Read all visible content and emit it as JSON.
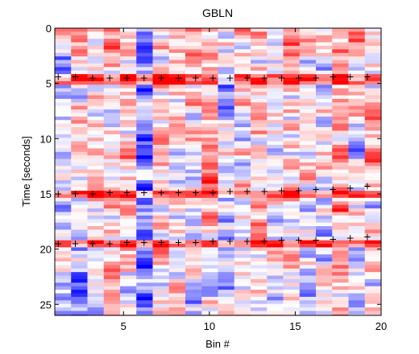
{
  "chart_data": {
    "type": "heatmap",
    "title": "GBLN",
    "xlabel": "Bin #",
    "ylabel": "Time [seconds]",
    "xlim": [
      1,
      20
    ],
    "ylim": [
      0,
      26
    ],
    "y_reversed": true,
    "xticks": [
      5,
      10,
      15,
      20
    ],
    "yticks": [
      0,
      5,
      10,
      15,
      20,
      25
    ],
    "colormap": {
      "negative": "#0000ff",
      "zero": "#ffffff",
      "positive": "#ff0000"
    },
    "color_range": [
      -1,
      1
    ],
    "marker_symbol": "+",
    "markers": [
      {
        "x": 1.2,
        "y": 4.4
      },
      {
        "x": 2.2,
        "y": 4.4
      },
      {
        "x": 3.2,
        "y": 4.5
      },
      {
        "x": 4.2,
        "y": 4.5
      },
      {
        "x": 5.2,
        "y": 4.5
      },
      {
        "x": 6.2,
        "y": 4.5
      },
      {
        "x": 7.2,
        "y": 4.5
      },
      {
        "x": 8.2,
        "y": 4.5
      },
      {
        "x": 9.2,
        "y": 4.5
      },
      {
        "x": 10.2,
        "y": 4.5
      },
      {
        "x": 11.2,
        "y": 4.5
      },
      {
        "x": 12.2,
        "y": 4.5
      },
      {
        "x": 13.2,
        "y": 4.5
      },
      {
        "x": 14.2,
        "y": 4.5
      },
      {
        "x": 15.2,
        "y": 4.5
      },
      {
        "x": 16.2,
        "y": 4.5
      },
      {
        "x": 17.2,
        "y": 4.4
      },
      {
        "x": 18.2,
        "y": 4.4
      },
      {
        "x": 19.2,
        "y": 4.4
      },
      {
        "x": 1.2,
        "y": 15.0
      },
      {
        "x": 2.2,
        "y": 15.0
      },
      {
        "x": 3.2,
        "y": 15.0
      },
      {
        "x": 4.2,
        "y": 14.9
      },
      {
        "x": 5.2,
        "y": 14.9
      },
      {
        "x": 6.2,
        "y": 14.9
      },
      {
        "x": 7.2,
        "y": 14.9
      },
      {
        "x": 8.2,
        "y": 14.9
      },
      {
        "x": 9.2,
        "y": 14.9
      },
      {
        "x": 10.2,
        "y": 14.9
      },
      {
        "x": 11.2,
        "y": 14.8
      },
      {
        "x": 12.2,
        "y": 14.8
      },
      {
        "x": 13.2,
        "y": 14.8
      },
      {
        "x": 14.2,
        "y": 14.7
      },
      {
        "x": 15.2,
        "y": 14.7
      },
      {
        "x": 16.2,
        "y": 14.6
      },
      {
        "x": 17.2,
        "y": 14.6
      },
      {
        "x": 18.2,
        "y": 14.5
      },
      {
        "x": 19.2,
        "y": 14.3
      },
      {
        "x": 1.2,
        "y": 19.5
      },
      {
        "x": 2.2,
        "y": 19.5
      },
      {
        "x": 3.2,
        "y": 19.5
      },
      {
        "x": 4.2,
        "y": 19.5
      },
      {
        "x": 5.2,
        "y": 19.4
      },
      {
        "x": 6.2,
        "y": 19.4
      },
      {
        "x": 7.2,
        "y": 19.4
      },
      {
        "x": 8.2,
        "y": 19.4
      },
      {
        "x": 9.2,
        "y": 19.4
      },
      {
        "x": 10.2,
        "y": 19.3
      },
      {
        "x": 11.2,
        "y": 19.3
      },
      {
        "x": 12.2,
        "y": 19.3
      },
      {
        "x": 13.2,
        "y": 19.3
      },
      {
        "x": 14.2,
        "y": 19.2
      },
      {
        "x": 15.2,
        "y": 19.2
      },
      {
        "x": 16.2,
        "y": 19.2
      },
      {
        "x": 17.2,
        "y": 19.1
      },
      {
        "x": 18.2,
        "y": 19.0
      },
      {
        "x": 19.2,
        "y": 18.9
      }
    ]
  }
}
